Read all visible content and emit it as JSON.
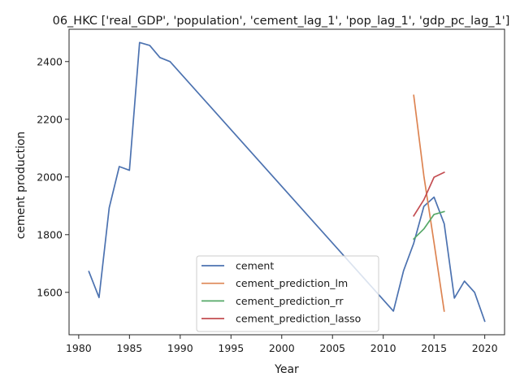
{
  "chart_data": {
    "type": "line",
    "title": "06_HKC ['real_GDP', 'population', 'cement_lag_1', 'pop_lag_1', 'gdp_pc_lag_1']",
    "xlabel": "Year",
    "ylabel": "cement production",
    "xlim": [
      1979.05,
      2021.95
    ],
    "ylim": [
      1453,
      2512
    ],
    "xticks": [
      1980,
      1985,
      1990,
      1995,
      2000,
      2005,
      2010,
      2015,
      2020
    ],
    "yticks": [
      1600,
      1800,
      2000,
      2200,
      2400
    ],
    "grid": false,
    "legend_position": "lower-center",
    "series": [
      {
        "name": "cement",
        "color": "#4c72b0",
        "x": [
          1981,
          1982,
          1983,
          1984,
          1985,
          1986,
          1987,
          1988,
          1989,
          2011,
          2012,
          2013,
          2014,
          2015,
          2016,
          2017,
          2018,
          2019,
          2020
        ],
        "y": [
          1672,
          1582,
          1893,
          2036,
          2023,
          2466,
          2456,
          2414,
          2400,
          1535,
          1675,
          1770,
          1898,
          1930,
          1838,
          1580,
          1639,
          1600,
          1500
        ]
      },
      {
        "name": "cement_prediction_lm",
        "color": "#dd8452",
        "x": [
          2013,
          2014,
          2015,
          2016
        ],
        "y": [
          2283,
          2003,
          1772,
          1535
        ]
      },
      {
        "name": "cement_prediction_rr",
        "color": "#55a868",
        "x": [
          2013,
          2014,
          2015,
          2016
        ],
        "y": [
          1785,
          1820,
          1870,
          1880
        ]
      },
      {
        "name": "cement_prediction_lasso",
        "color": "#c44e52",
        "x": [
          2013,
          2014,
          2015,
          2016
        ],
        "y": [
          1865,
          1921,
          1999,
          2016
        ]
      }
    ]
  }
}
